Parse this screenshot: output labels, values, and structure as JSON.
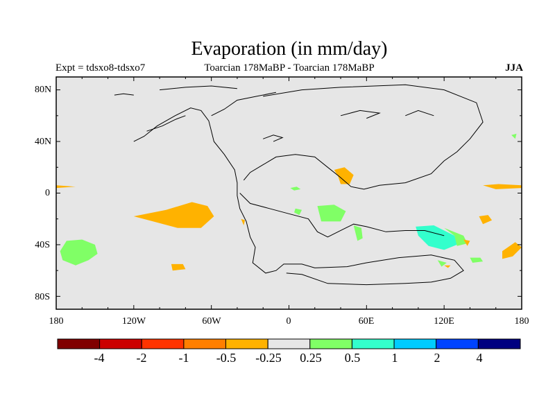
{
  "title": "Evaporation (in mm/day)",
  "left_subtitle": "Expt = tdsxo8-tdsxo7",
  "center_subtitle": "Toarcian 178MaBP - Toarcian 178MaBP",
  "season": "JJA",
  "y_axis": {
    "ticks": [
      "80N",
      "40N",
      "0",
      "40S",
      "80S"
    ],
    "tick_values": [
      80,
      40,
      0,
      -40,
      -80
    ],
    "range": [
      -90,
      90
    ]
  },
  "x_axis": {
    "ticks": [
      "180",
      "120W",
      "60W",
      "0",
      "60E",
      "120E",
      "180"
    ],
    "tick_values": [
      -180,
      -120,
      -60,
      0,
      60,
      120,
      180
    ],
    "range": [
      -180,
      180
    ]
  },
  "colorbar": {
    "colors": [
      "#800000",
      "#cc0000",
      "#ff3300",
      "#ff7f00",
      "#ffb200",
      "#e6e6e6",
      "#80ff66",
      "#33ffcc",
      "#00ccff",
      "#0044ff",
      "#000080"
    ],
    "labels": [
      "-4",
      "-2",
      "-1",
      "-0.5",
      "-0.25",
      "0.25",
      "0.5",
      "1",
      "2",
      "4"
    ]
  },
  "anomaly_regions": [
    {
      "color": "#ffb200",
      "points": [
        [
          -180,
          6
        ],
        [
          -165,
          5
        ],
        [
          -180,
          4
        ]
      ]
    },
    {
      "color": "#ffb200",
      "points": [
        [
          -120,
          -18
        ],
        [
          -95,
          -13
        ],
        [
          -75,
          -7
        ],
        [
          -63,
          -10
        ],
        [
          -58,
          -18
        ],
        [
          -68,
          -27
        ],
        [
          -86,
          -27
        ],
        [
          -105,
          -22
        ]
      ]
    },
    {
      "color": "#80ff66",
      "points": [
        [
          -172,
          -37
        ],
        [
          -160,
          -36
        ],
        [
          -150,
          -40
        ],
        [
          -148,
          -47
        ],
        [
          -155,
          -52
        ],
        [
          -165,
          -56
        ],
        [
          -175,
          -52
        ],
        [
          -177,
          -45
        ]
      ]
    },
    {
      "color": "#ffb200",
      "points": [
        [
          -91,
          -55
        ],
        [
          -82,
          -55
        ],
        [
          -80,
          -59
        ],
        [
          -90,
          -60
        ]
      ]
    },
    {
      "color": "#ffb200",
      "points": [
        [
          35,
          18
        ],
        [
          43,
          20
        ],
        [
          50,
          14
        ],
        [
          47,
          7
        ],
        [
          40,
          7
        ],
        [
          38,
          13
        ]
      ]
    },
    {
      "color": "#80ff66",
      "points": [
        [
          22,
          -10
        ],
        [
          35,
          -9
        ],
        [
          44,
          -14
        ],
        [
          40,
          -22
        ],
        [
          25,
          -22
        ]
      ]
    },
    {
      "color": "#80ff66",
      "points": [
        [
          50,
          -25
        ],
        [
          56,
          -27
        ],
        [
          57,
          -35
        ],
        [
          53,
          -37
        ]
      ]
    },
    {
      "color": "#80ff66",
      "points": [
        [
          1,
          4
        ],
        [
          6,
          5
        ],
        [
          9,
          3
        ],
        [
          4,
          2
        ]
      ]
    },
    {
      "color": "#80ff66",
      "points": [
        [
          5,
          -12
        ],
        [
          10,
          -13
        ],
        [
          8,
          -17
        ],
        [
          4,
          -15
        ]
      ]
    },
    {
      "color": "#33ffcc",
      "points": [
        [
          98,
          -26
        ],
        [
          112,
          -25
        ],
        [
          128,
          -33
        ],
        [
          130,
          -40
        ],
        [
          120,
          -44
        ],
        [
          108,
          -41
        ],
        [
          100,
          -33
        ]
      ]
    },
    {
      "color": "#80ff66",
      "points": [
        [
          120,
          -27
        ],
        [
          135,
          -33
        ],
        [
          138,
          -39
        ],
        [
          130,
          -41
        ],
        [
          128,
          -33
        ]
      ]
    },
    {
      "color": "#ffb200",
      "points": [
        [
          135,
          -36
        ],
        [
          140,
          -37
        ],
        [
          138,
          -41
        ]
      ]
    },
    {
      "color": "#ffb200",
      "points": [
        [
          147,
          -18
        ],
        [
          154,
          -17
        ],
        [
          157,
          -21
        ],
        [
          150,
          -24
        ]
      ]
    },
    {
      "color": "#ffb200",
      "points": [
        [
          150,
          6
        ],
        [
          162,
          7
        ],
        [
          180,
          6
        ],
        [
          180,
          4
        ],
        [
          160,
          3
        ]
      ]
    },
    {
      "color": "#80ff66",
      "points": [
        [
          140,
          -50
        ],
        [
          148,
          -50
        ],
        [
          150,
          -53
        ],
        [
          142,
          -54
        ]
      ]
    },
    {
      "color": "#80ff66",
      "points": [
        [
          115,
          -52
        ],
        [
          122,
          -54
        ],
        [
          118,
          -57
        ]
      ]
    },
    {
      "color": "#ffb200",
      "points": [
        [
          120,
          -56
        ],
        [
          125,
          -56
        ],
        [
          123,
          -58
        ]
      ]
    },
    {
      "color": "#ffb200",
      "points": [
        [
          165,
          -45
        ],
        [
          175,
          -38
        ],
        [
          180,
          -42
        ],
        [
          173,
          -49
        ],
        [
          165,
          -51
        ]
      ]
    },
    {
      "color": "#80ff66",
      "points": [
        [
          172,
          45
        ],
        [
          176,
          46
        ],
        [
          175,
          42
        ]
      ]
    },
    {
      "color": "#ffb200",
      "points": [
        [
          -37,
          -20
        ],
        [
          -34,
          -21
        ],
        [
          -35,
          -25
        ]
      ]
    }
  ],
  "coastlines": [
    [
      [
        -120,
        40
      ],
      [
        -112,
        44
      ],
      [
        -102,
        52
      ],
      [
        -88,
        60
      ],
      [
        -76,
        66
      ],
      [
        -68,
        64
      ],
      [
        -62,
        56
      ],
      [
        -60,
        48
      ],
      [
        -58,
        40
      ],
      [
        -50,
        30
      ],
      [
        -42,
        18
      ],
      [
        -40,
        8
      ],
      [
        -40,
        -2
      ],
      [
        -38,
        -12
      ],
      [
        -33,
        -22
      ],
      [
        -30,
        -34
      ],
      [
        -26,
        -42
      ],
      [
        -28,
        -54
      ],
      [
        -18,
        -62
      ],
      [
        -10,
        -60
      ],
      [
        -4,
        -55
      ],
      [
        10,
        -55
      ],
      [
        20,
        -58
      ],
      [
        45,
        -57
      ],
      [
        60,
        -54
      ],
      [
        85,
        -50
      ],
      [
        110,
        -48
      ],
      [
        128,
        -52
      ],
      [
        135,
        -60
      ],
      [
        125,
        -66
      ],
      [
        110,
        -69
      ],
      [
        90,
        -70
      ],
      [
        60,
        -71
      ],
      [
        30,
        -70
      ],
      [
        10,
        -63
      ],
      [
        -2,
        -62
      ]
    ],
    [
      [
        -35,
        10
      ],
      [
        -30,
        16
      ],
      [
        -20,
        22
      ],
      [
        -10,
        28
      ],
      [
        5,
        30
      ],
      [
        20,
        28
      ],
      [
        30,
        20
      ],
      [
        40,
        12
      ],
      [
        48,
        5
      ],
      [
        58,
        3
      ],
      [
        70,
        6
      ],
      [
        90,
        8
      ],
      [
        110,
        15
      ],
      [
        120,
        25
      ],
      [
        130,
        32
      ],
      [
        140,
        42
      ],
      [
        150,
        55
      ],
      [
        145,
        70
      ],
      [
        120,
        80
      ],
      [
        90,
        84
      ],
      [
        40,
        82
      ],
      [
        10,
        80
      ],
      [
        -20,
        75
      ]
    ],
    [
      [
        -38,
        0
      ],
      [
        -30,
        -8
      ],
      [
        -15,
        -12
      ],
      [
        0,
        -16
      ],
      [
        15,
        -20
      ],
      [
        22,
        -30
      ],
      [
        30,
        -34
      ],
      [
        42,
        -28
      ],
      [
        50,
        -24
      ],
      [
        60,
        -26
      ],
      [
        75,
        -30
      ],
      [
        90,
        -29
      ],
      [
        105,
        -29
      ],
      [
        120,
        -33
      ]
    ],
    [
      [
        -110,
        48
      ],
      [
        -98,
        52
      ],
      [
        -88,
        57
      ],
      [
        -80,
        60
      ]
    ],
    [
      [
        -60,
        60
      ],
      [
        -50,
        65
      ],
      [
        -40,
        72
      ],
      [
        -25,
        75
      ],
      [
        -10,
        78
      ]
    ],
    [
      [
        -135,
        76
      ],
      [
        -128,
        77
      ],
      [
        -120,
        76
      ]
    ],
    [
      [
        -100,
        80
      ],
      [
        -80,
        82
      ],
      [
        -60,
        83
      ],
      [
        -40,
        81
      ]
    ],
    [
      [
        -20,
        42
      ],
      [
        -12,
        45
      ],
      [
        -5,
        43
      ],
      [
        -12,
        40
      ]
    ],
    [
      [
        40,
        60
      ],
      [
        55,
        64
      ],
      [
        70,
        62
      ],
      [
        60,
        58
      ]
    ],
    [
      [
        90,
        60
      ],
      [
        100,
        64
      ],
      [
        112,
        60
      ]
    ]
  ]
}
